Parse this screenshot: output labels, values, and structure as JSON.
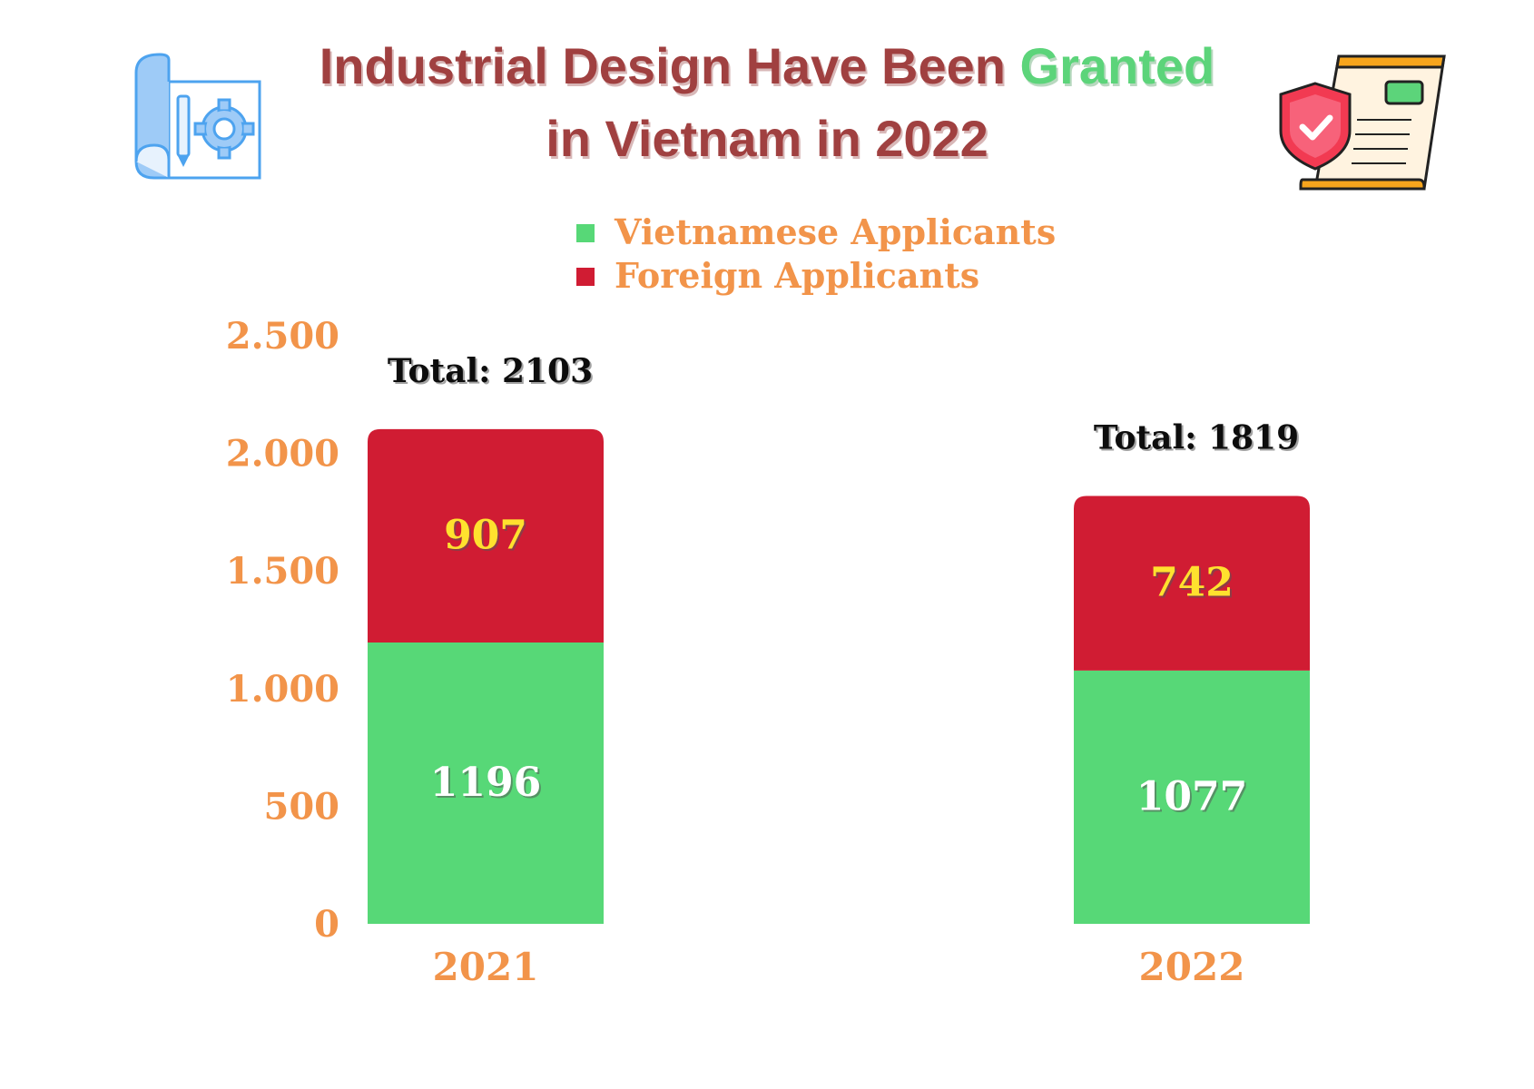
{
  "title": {
    "line1_prefix": "Industrial Design Have Been",
    "line1_highlight": "Granted",
    "line2": "in Vietnam in 2022"
  },
  "icons": {
    "left": "blueprint-gear-icon",
    "right": "certificate-shield-icon"
  },
  "colors": {
    "vietnamese": "#57d877",
    "foreign": "#d01c33",
    "axis_text": "#f2944a",
    "title": "#a04040",
    "highlight": "#5cd47a",
    "foreign_label": "#ffe12e",
    "vietnamese_label": "#ffffff"
  },
  "chart_data": {
    "type": "bar",
    "stacked": true,
    "categories": [
      "2021",
      "2022"
    ],
    "series": [
      {
        "name": "Vietnamese Applicants",
        "values": [
          1196,
          1077
        ]
      },
      {
        "name": "Foreign Applicants",
        "values": [
          907,
          742
        ]
      }
    ],
    "totals": [
      "Total: 2103",
      "Total: 1819"
    ],
    "yticks": [
      {
        "value": 0,
        "label": "0"
      },
      {
        "value": 500,
        "label": "500"
      },
      {
        "value": 1000,
        "label": "1.000"
      },
      {
        "value": 1500,
        "label": "1.500"
      },
      {
        "value": 2000,
        "label": "2.000"
      },
      {
        "value": 2500,
        "label": "2.500"
      }
    ],
    "ylim": [
      0,
      2500
    ],
    "grid": false,
    "legend_position": "top-center"
  }
}
